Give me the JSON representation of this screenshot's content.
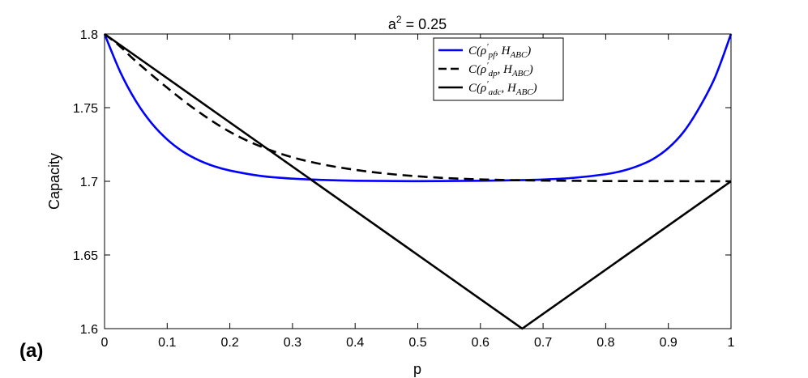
{
  "panel_label": "(a)",
  "chart_data": {
    "type": "line",
    "title_base": "a",
    "title_sup": "2",
    "title_rest": " = 0.25",
    "xlabel": "p",
    "ylabel": "Capacity",
    "xlim": [
      0,
      1
    ],
    "ylim": [
      1.6,
      1.8
    ],
    "xticks": [
      "0",
      "0.1",
      "0.2",
      "0.3",
      "0.4",
      "0.5",
      "0.6",
      "0.7",
      "0.8",
      "0.9",
      "1"
    ],
    "yticks": [
      "1.6",
      "1.65",
      "1.7",
      "1.75",
      "1.8"
    ],
    "grid": false,
    "legend_position": "top-center",
    "series": [
      {
        "name": "C(ρ'_pf, H_ABC)",
        "legend": {
          "base": "C(ρ",
          "sup": "′",
          "sub": "pf",
          "rest": ", H",
          "sub2": "ABC",
          "end": ")"
        },
        "color": "#0000ff",
        "style": "solid",
        "x": [
          0,
          0.025,
          0.05,
          0.075,
          0.1,
          0.125,
          0.15,
          0.175,
          0.2,
          0.25,
          0.3,
          0.35,
          0.4,
          0.5,
          0.6,
          0.65,
          0.7,
          0.75,
          0.8,
          0.825,
          0.85,
          0.875,
          0.9,
          0.925,
          0.95,
          0.975,
          1
        ],
        "y": [
          1.8,
          1.7743,
          1.7545,
          1.7395,
          1.7284,
          1.7202,
          1.7144,
          1.7102,
          1.7073,
          1.7036,
          1.7018,
          1.7009,
          1.7004,
          1.7001,
          1.7004,
          1.7007,
          1.7012,
          1.7024,
          1.7048,
          1.7069,
          1.7102,
          1.715,
          1.7226,
          1.7339,
          1.7504,
          1.7711,
          1.8
        ]
      },
      {
        "name": "C(ρ'_dp, H_ABC)",
        "legend": {
          "base": "C(ρ",
          "sup": "′",
          "sub": "dp",
          "rest": ", H",
          "sub2": "ABC",
          "end": ")"
        },
        "color": "#000000",
        "style": "dashed",
        "x": [
          0,
          0.025,
          0.05,
          0.1,
          0.15,
          0.2,
          0.25,
          0.3,
          0.35,
          0.4,
          0.45,
          0.5,
          0.55,
          0.6,
          0.65,
          0.7,
          0.8,
          0.9,
          1
        ],
        "y": [
          1.8,
          1.7915,
          1.7815,
          1.7635,
          1.7472,
          1.7336,
          1.7235,
          1.7163,
          1.7113,
          1.7078,
          1.7052,
          1.7034,
          1.7021,
          1.7013,
          1.7008,
          1.7005,
          1.7002,
          1.7001,
          1.7
        ]
      },
      {
        "name": "C(ρ'_adc, H_ABC)",
        "legend": {
          "base": "C(ρ",
          "sup": "′",
          "sub": "adc",
          "rest": ", H",
          "sub2": "ABC",
          "end": ")"
        },
        "color": "#000000",
        "style": "solid",
        "x": [
          0,
          0.6667,
          1
        ],
        "y": [
          1.8,
          1.6,
          1.7
        ]
      }
    ]
  }
}
